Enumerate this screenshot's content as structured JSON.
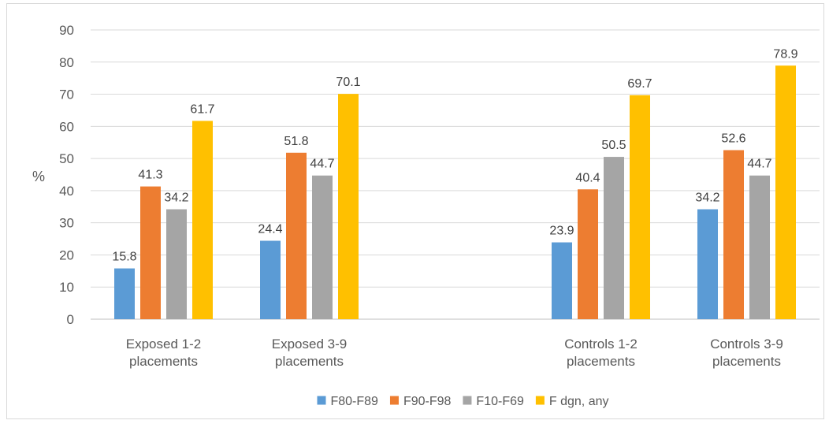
{
  "chart_data": {
    "type": "bar",
    "title": "",
    "xlabel": "",
    "ylabel": "%",
    "ylim": [
      0,
      90
    ],
    "yticks": [
      0,
      10,
      20,
      30,
      40,
      50,
      60,
      70,
      80,
      90
    ],
    "grid": "horizontal",
    "legend_position": "bottom",
    "categories": [
      [
        "Exposed 1-2",
        "placements"
      ],
      [
        "Exposed 3-9",
        "placements"
      ],
      [
        "",
        ""
      ],
      [
        "Controls 1-2",
        "placements"
      ],
      [
        "Controls 3-9",
        "placements"
      ]
    ],
    "series": [
      {
        "name": "F80-F89",
        "color": "#5b9bd5",
        "values": [
          15.8,
          24.4,
          null,
          23.9,
          34.2
        ]
      },
      {
        "name": "F90-F98",
        "color": "#ed7d31",
        "values": [
          41.3,
          51.8,
          null,
          40.4,
          52.6
        ]
      },
      {
        "name": "F10-F69",
        "color": "#a5a5a5",
        "values": [
          34.2,
          44.7,
          null,
          50.5,
          44.7
        ]
      },
      {
        "name": "F dgn, any",
        "color": "#ffc000",
        "values": [
          61.7,
          70.1,
          null,
          69.7,
          78.9
        ]
      }
    ]
  }
}
